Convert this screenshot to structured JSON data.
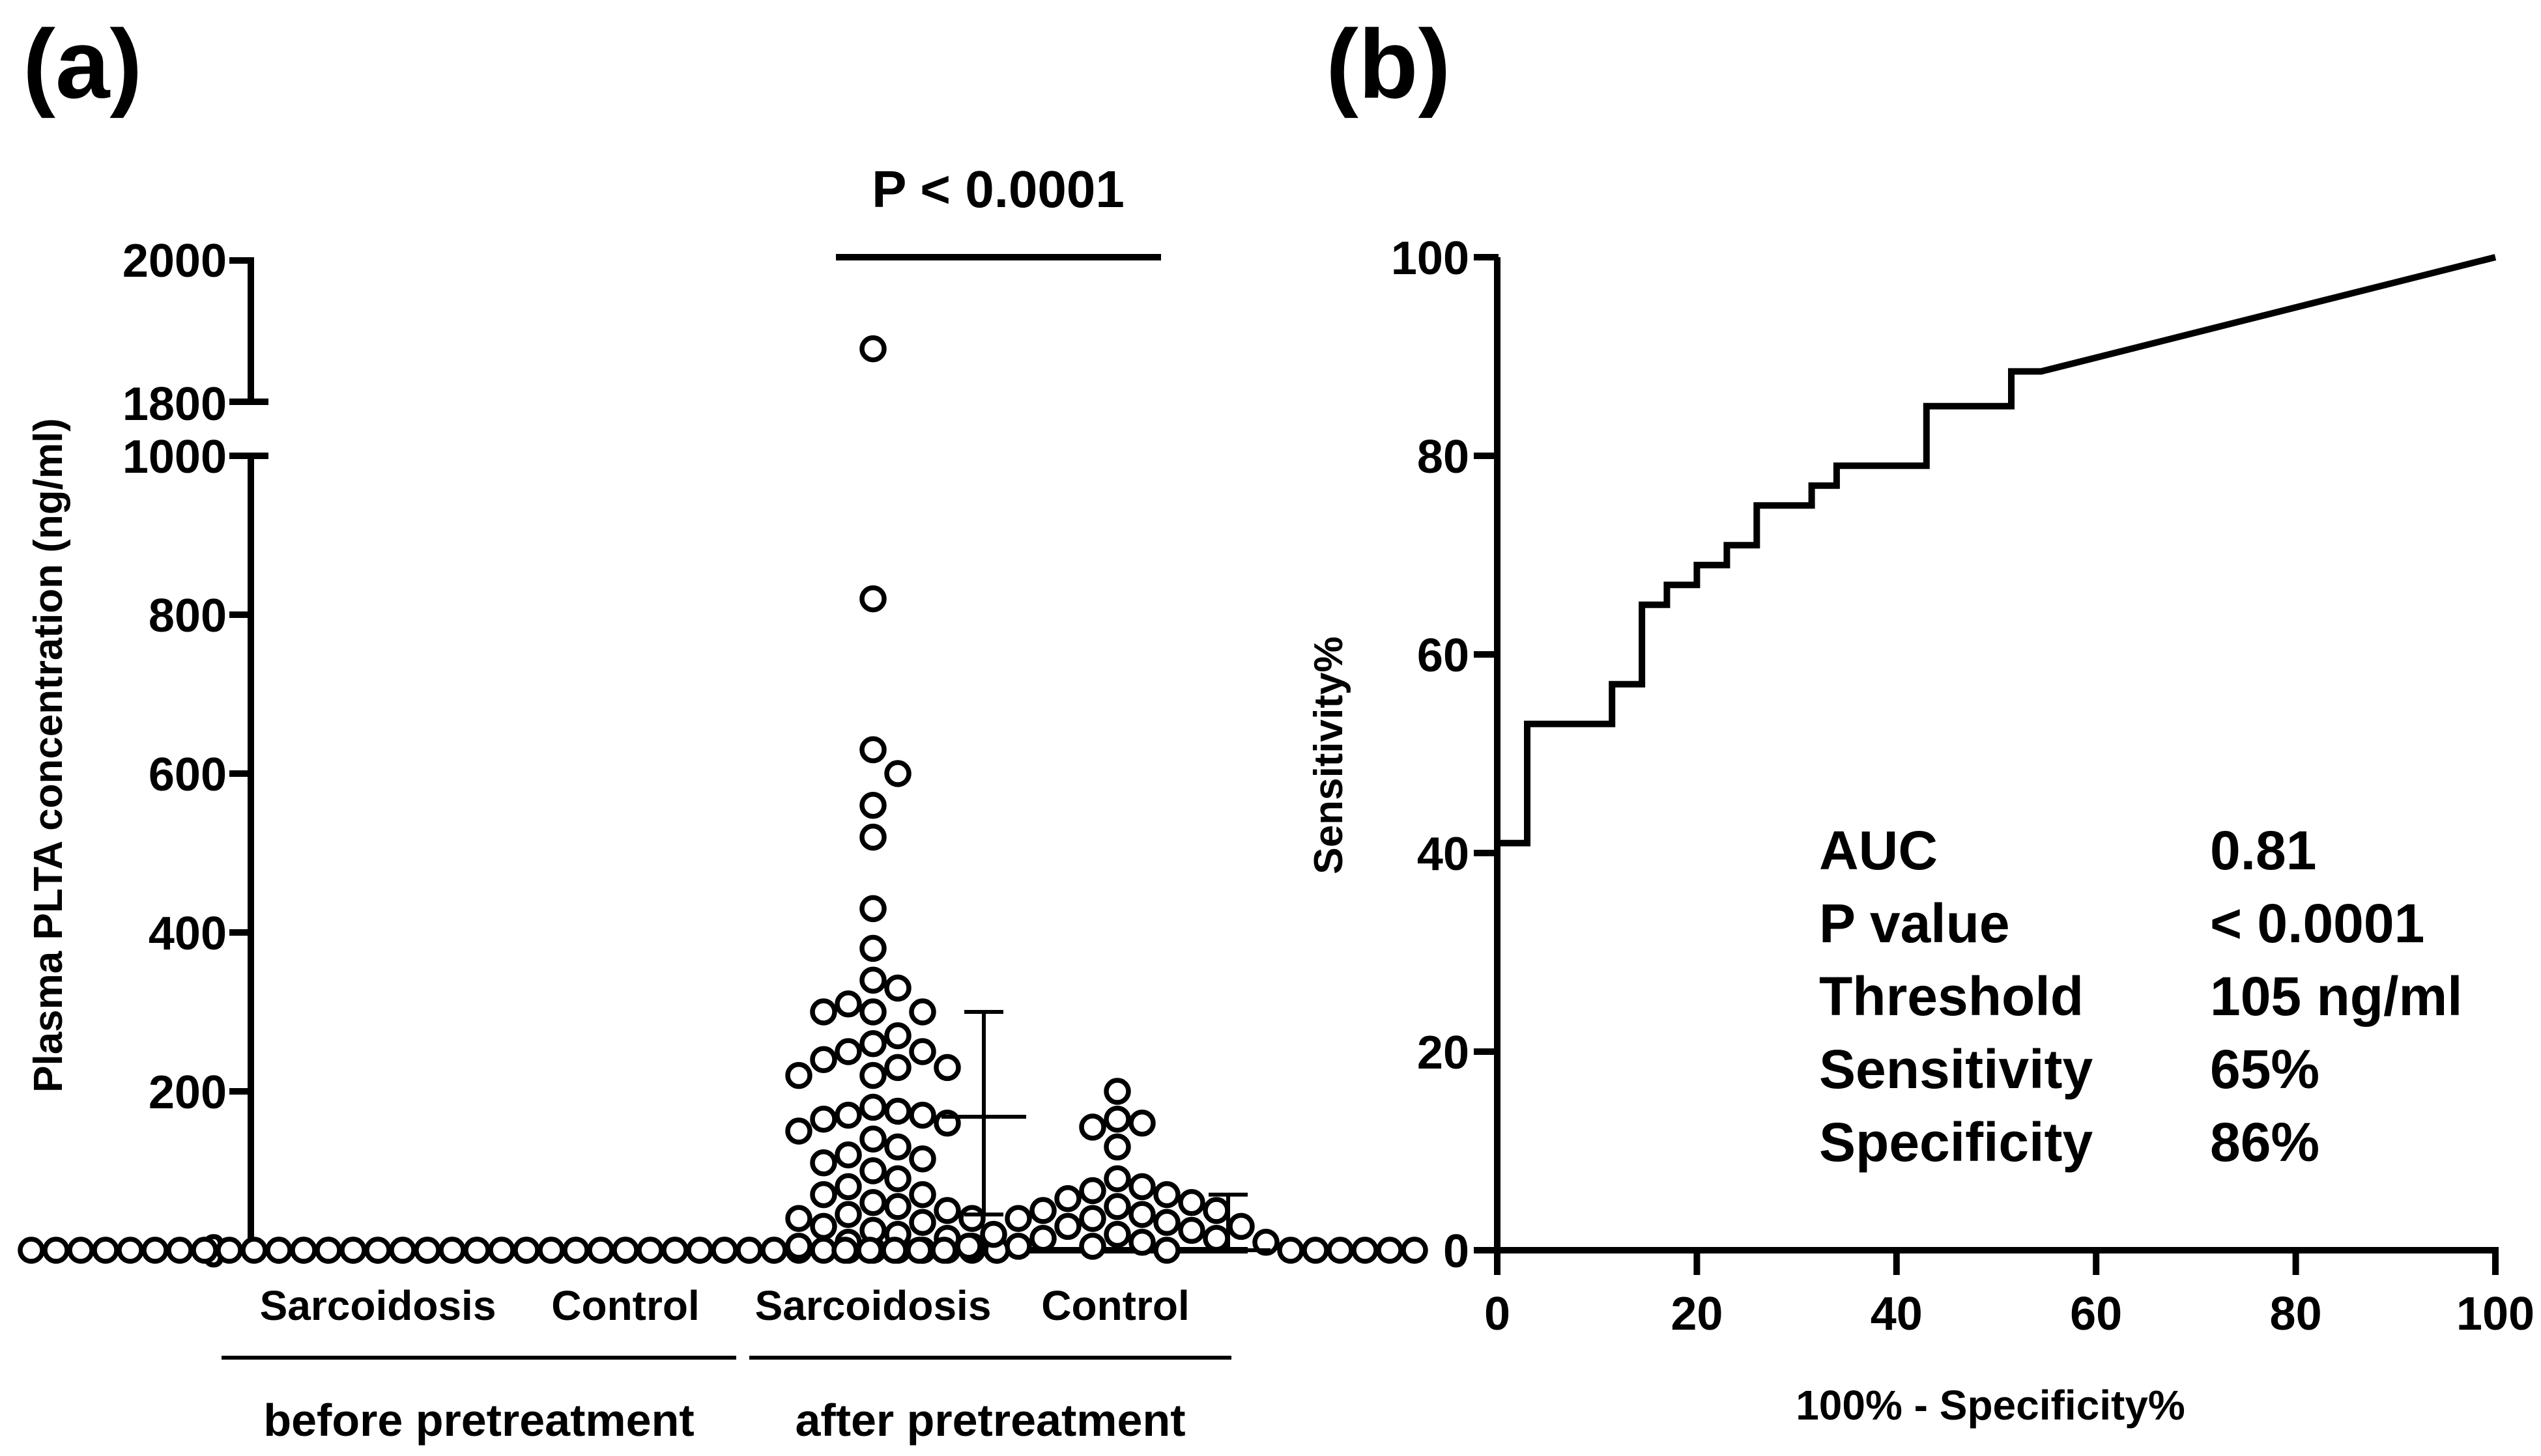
{
  "chart_data": [
    {
      "panel": "(a)",
      "type": "scatter",
      "ylabel": "Plasma PLTA concentration (ng/ml)",
      "ylim_lower": [
        0,
        1000
      ],
      "ylim_upper": [
        1800,
        2000
      ],
      "yticks_lower": [
        "0",
        "200",
        "400",
        "600",
        "800",
        "1000"
      ],
      "yticks_upper": [
        "1800",
        "2000"
      ],
      "categories": [
        "Sarcoidosis",
        "Control",
        "Sarcoidosis",
        "Control"
      ],
      "groups": [
        "before pretreatment",
        "after pretreatment"
      ],
      "significance": "P < 0.0001",
      "series": [
        {
          "name": "Sarcoidosis (before pretreatment)",
          "values": [
            0,
            0,
            0,
            0,
            0,
            0,
            0,
            0,
            0,
            0,
            0,
            0,
            0,
            0,
            0,
            0,
            0,
            0,
            0,
            0,
            0,
            0,
            0,
            0,
            0,
            0,
            0,
            0,
            0,
            0
          ],
          "mean": null,
          "sd": null
        },
        {
          "name": "Control (before pretreatment)",
          "values": [
            0,
            0,
            0,
            0,
            0,
            0,
            0,
            0,
            0,
            0,
            0,
            0,
            0,
            0,
            0,
            0,
            0,
            0,
            0,
            0,
            0,
            0,
            0,
            0,
            0,
            0,
            0,
            0,
            0,
            0
          ],
          "mean": null,
          "sd": null
        },
        {
          "name": "Sarcoidosis (after pretreatment)",
          "values": [
            1875,
            820,
            630,
            600,
            560,
            520,
            430,
            380,
            340,
            330,
            310,
            300,
            300,
            300,
            270,
            260,
            250,
            250,
            240,
            230,
            230,
            220,
            220,
            180,
            175,
            170,
            170,
            165,
            160,
            150,
            140,
            130,
            120,
            115,
            110,
            100,
            90,
            80,
            70,
            70,
            60,
            55,
            50,
            45,
            40,
            40,
            35,
            30,
            25,
            20,
            15,
            10,
            5,
            5,
            0,
            0,
            0
          ],
          "mean": 168,
          "sd_low": 45,
          "sd_high": 300
        },
        {
          "name": "Control (after pretreatment)",
          "values": [
            200,
            165,
            160,
            155,
            130,
            90,
            80,
            75,
            70,
            65,
            60,
            55,
            50,
            50,
            45,
            40,
            40,
            35,
            30,
            30,
            25,
            20,
            20,
            15,
            15,
            10,
            10,
            5,
            5,
            5,
            0,
            0,
            0,
            0,
            0,
            0,
            0,
            0,
            0,
            0,
            0,
            0
          ],
          "mean": 0,
          "sd_low": 0,
          "sd_high": 70
        }
      ]
    },
    {
      "panel": "(b)",
      "type": "line",
      "xlabel": "100% - Specificity%",
      "ylabel": "Sensitivity%",
      "xlim": [
        0,
        100
      ],
      "ylim": [
        0,
        100
      ],
      "xticks": [
        "0",
        "20",
        "40",
        "60",
        "80",
        "100"
      ],
      "yticks": [
        "0",
        "20",
        "40",
        "60",
        "80",
        "100"
      ],
      "x": [
        0,
        0,
        3,
        3,
        11.5,
        11.5,
        14.5,
        14.5,
        17,
        17,
        20,
        20,
        23,
        23,
        26,
        26,
        31.5,
        31.5,
        34,
        34,
        43,
        43,
        51.5,
        51.5,
        54.5,
        100
      ],
      "y": [
        0,
        41,
        41,
        53,
        53,
        57,
        57,
        65,
        65,
        67,
        67,
        69,
        69,
        71,
        71,
        75,
        75,
        77,
        77,
        79,
        79,
        85,
        85,
        88.5,
        88.5,
        100
      ],
      "stats": [
        {
          "label": "AUC",
          "value": "0.81"
        },
        {
          "label": "P value",
          "value": "< 0.0001"
        },
        {
          "label": "Threshold",
          "value": "105 ng/ml"
        },
        {
          "label": "Sensitivity",
          "value": "65%"
        },
        {
          "label": "Specificity",
          "value": "86%"
        }
      ]
    }
  ]
}
